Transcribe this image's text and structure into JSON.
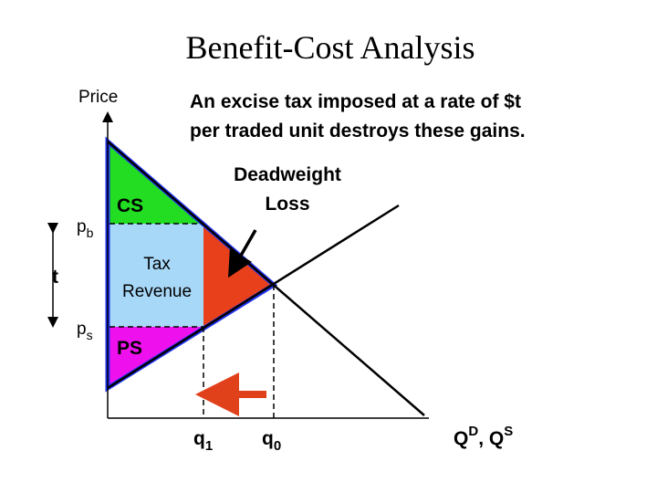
{
  "title": "Benefit-Cost Analysis",
  "axes": {
    "y_label": "Price",
    "x_label": {
      "q_d": "Q",
      "d": "D",
      "sep": ", ",
      "q_s": "Q",
      "s": "S"
    }
  },
  "note": {
    "lines": [
      "An excise tax imposed at a rate of $t",
      "per traded unit destroys these gains."
    ]
  },
  "regions": {
    "consumer_surplus": "CS",
    "tax_revenue": [
      "Tax",
      "Revenue"
    ],
    "producer_surplus": "PS",
    "deadweight_loss": [
      "Deadweight",
      "Loss"
    ]
  },
  "prices": {
    "buyer": {
      "base": "p",
      "sub": "b"
    },
    "seller": {
      "base": "p",
      "sub": "s"
    },
    "tax": "t"
  },
  "quantities": {
    "q1": {
      "base": "q",
      "sub": "1"
    },
    "q0": {
      "base": "q",
      "sub": "0"
    }
  }
}
